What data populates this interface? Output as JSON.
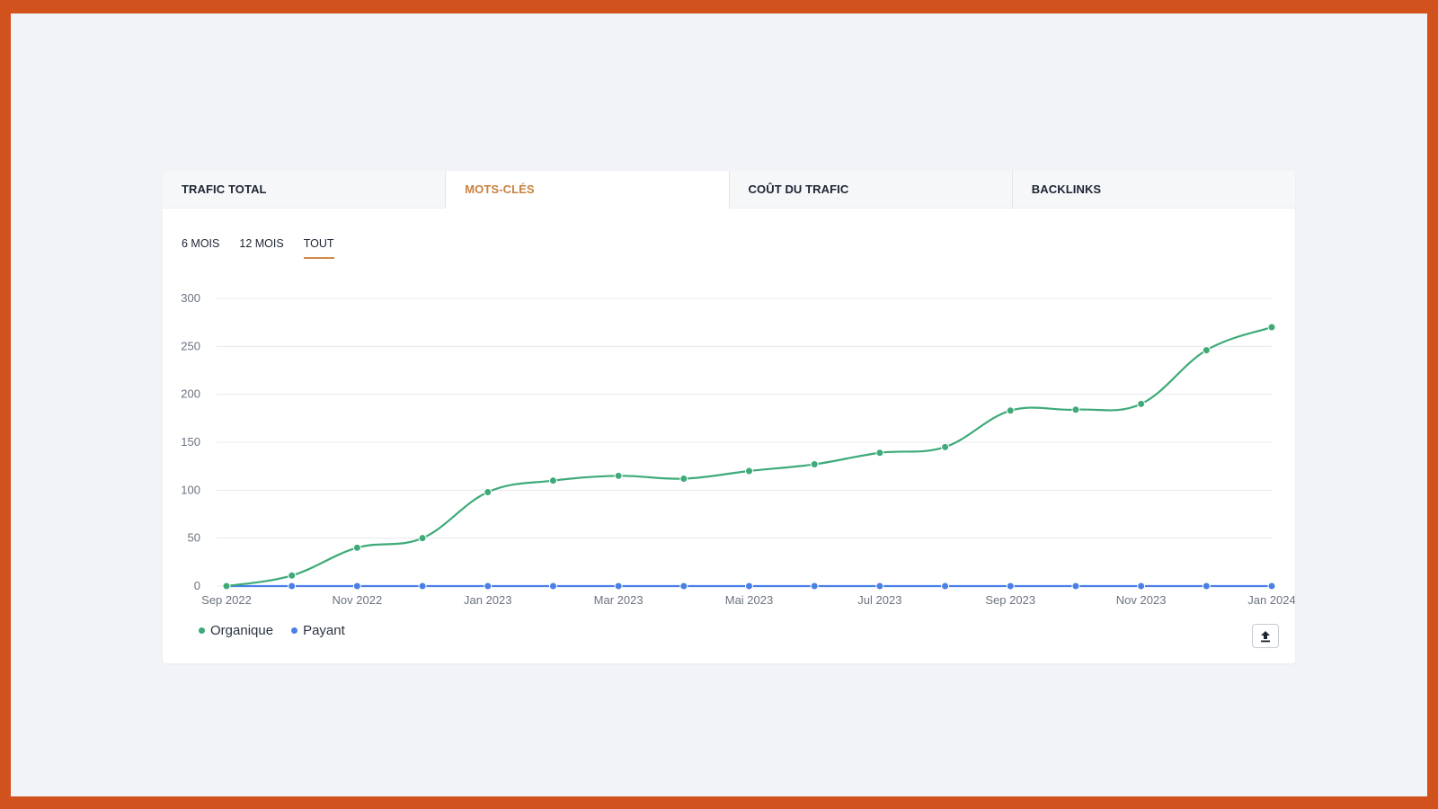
{
  "tabs": [
    {
      "label": "TRAFIC TOTAL",
      "active": false
    },
    {
      "label": "MOTS-CLÉS",
      "active": true
    },
    {
      "label": "COÛT DU TRAFIC",
      "active": false
    },
    {
      "label": "BACKLINKS",
      "active": false
    }
  ],
  "periods": [
    {
      "label": "6 MOIS",
      "active": false
    },
    {
      "label": "12 MOIS",
      "active": false
    },
    {
      "label": "TOUT",
      "active": true
    }
  ],
  "chart_data": {
    "type": "line",
    "x": [
      "Sep 2022",
      "Oct 2022",
      "Nov 2022",
      "Dec 2022",
      "Jan 2023",
      "Feb 2023",
      "Mar 2023",
      "Apr 2023",
      "Mai 2023",
      "Jun 2023",
      "Jul 2023",
      "Aug 2023",
      "Sep 2023",
      "Oct 2023",
      "Nov 2023",
      "Dec 2023",
      "Jan 2024"
    ],
    "x_tick_labels": [
      "Sep 2022",
      "Nov 2022",
      "Jan 2023",
      "Mar 2023",
      "Mai 2023",
      "Jul 2023",
      "Sep 2023",
      "Nov 2023",
      "Jan 2024"
    ],
    "series": [
      {
        "name": "Organique",
        "color": "#3daa78",
        "values": [
          0,
          11,
          40,
          50,
          98,
          110,
          115,
          112,
          120,
          127,
          139,
          145,
          183,
          184,
          190,
          246,
          270
        ]
      },
      {
        "name": "Payant",
        "color": "#4a7fe8",
        "values": [
          0,
          0,
          0,
          0,
          0,
          0,
          0,
          0,
          0,
          0,
          0,
          0,
          0,
          0,
          0,
          0,
          0
        ]
      }
    ],
    "ylim": [
      0,
      300
    ],
    "yticks": [
      0,
      50,
      100,
      150,
      200,
      250,
      300
    ],
    "grid": true,
    "legend_position": "bottom-left",
    "xlabel": "",
    "ylabel": ""
  },
  "legend": {
    "organique": "Organique",
    "payant": "Payant"
  },
  "colors": {
    "accent": "#c9813f",
    "frame": "#d2521e",
    "organique": "#3daa78",
    "payant": "#4a7fe8"
  },
  "export_icon": "upload-icon"
}
